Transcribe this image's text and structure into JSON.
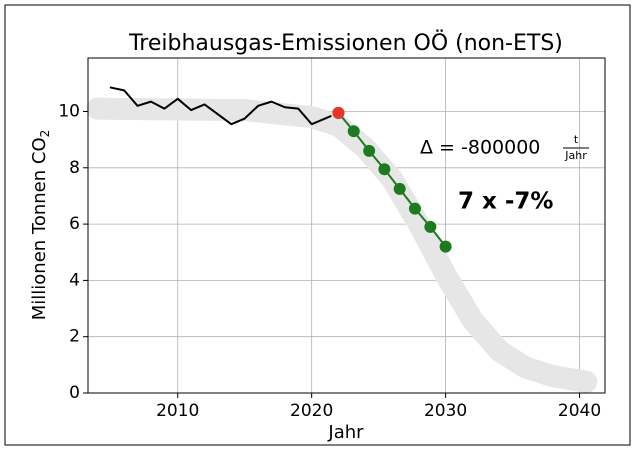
{
  "chart_data": {
    "type": "line",
    "title": "Treibhausgas-Emissionen OÖ (non-ETS)",
    "xlabel": "Jahr",
    "ylabel": {
      "text": "Millionen Tonnen CO",
      "sub": "2"
    },
    "xlim": [
      2003.3,
      2041.9
    ],
    "xticks": [
      2010,
      2020,
      2030,
      2040
    ],
    "ylim": [
      0,
      11.9
    ],
    "yticks": [
      0,
      2,
      4,
      6,
      8,
      10
    ],
    "grid": true,
    "series": [
      {
        "color": "#e6e6e6",
        "line": "band",
        "x": [
          2004,
          2015,
          2020,
          2022,
          2024,
          2026,
          2028,
          2030,
          2032,
          2034,
          2036,
          2038,
          2040.5
        ],
        "values": [
          10.1,
          10.05,
          9.8,
          9.5,
          8.7,
          7.6,
          6.0,
          4.2,
          2.6,
          1.5,
          0.9,
          0.6,
          0.4
        ]
      },
      {
        "color": "#000000",
        "line": "solid",
        "x": [
          2005,
          2006,
          2007,
          2008,
          2009,
          2010,
          2011,
          2012,
          2013,
          2014,
          2015,
          2016,
          2017,
          2018,
          2019,
          2020,
          2021
        ],
        "values": [
          10.85,
          10.75,
          10.2,
          10.35,
          10.1,
          10.45,
          10.05,
          10.25,
          9.9,
          9.55,
          9.75,
          10.2,
          10.35,
          10.15,
          10.1,
          9.55,
          9.75
        ]
      },
      {
        "color": "#000000",
        "line": "dashed",
        "x": [
          2021,
          2022
        ],
        "values": [
          9.75,
          9.95
        ]
      },
      {
        "color": "#1e7a1e",
        "line": "solid",
        "marker": true,
        "x": [
          2022,
          2023.14,
          2024.29,
          2025.43,
          2026.57,
          2027.71,
          2028.86,
          2030
        ],
        "values": [
          9.95,
          9.3,
          8.6,
          7.95,
          7.25,
          6.55,
          5.9,
          5.2
        ]
      },
      {
        "color": "#e8352a",
        "line": "none",
        "marker": true,
        "x": [
          2022
        ],
        "values": [
          9.95
        ]
      }
    ],
    "annotations": [
      {
        "text": "Δ = -800000",
        "num": "t",
        "den": "Jahr",
        "color": "#000000"
      },
      {
        "text": "7 x -7%",
        "color": "#3d9a2a"
      }
    ]
  }
}
